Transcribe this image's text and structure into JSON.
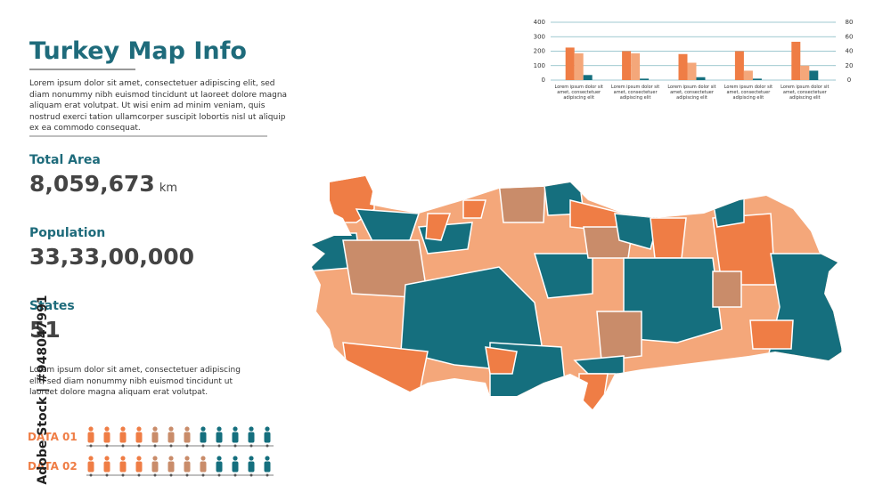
{
  "header": {
    "title": "Turkey Map Info",
    "description": "Lorem ipsum dolor sit amet, consectetuer adipiscing elit, sed diam nonummy nibh euismod tincidunt ut laoreet dolore magna aliquam erat volutpat. Ut wisi enim ad minim veniam, quis nostrud exerci tation ullamcorper suscipit lobortis nisl ut aliquip ex ea commodo consequat."
  },
  "stats": [
    {
      "label": "Total Area",
      "value": "8,059,673",
      "unit": "km"
    },
    {
      "label": "Population",
      "value": "33,33,00,000"
    },
    {
      "label": "States",
      "value": "51"
    }
  ],
  "note": "Lorem ipsum dolor sit amet, consectetuer adipiscing elit, sed diam nonummy nibh euismod tincidunt ut laoreet dolore magna aliquam erat volutpat.",
  "data_rows": [
    "DATA 01",
    "DATA 02"
  ],
  "watermark": "Adobe Stock | #948047991",
  "chart_data": {
    "type": "bar",
    "categories": [
      "Lorem ipsum dolor sit amet, consectetuer adipiscing elit",
      "Lorem ipsum dolor sit amet, consectetuer adipiscing elit",
      "Lorem ipsum dolor sit amet, consectetuer adipiscing elit",
      "Lorem ipsum dolor sit amet, consectetuer adipiscing elit",
      "Lorem ipsum dolor sit amet, consectetuer adipiscing elit"
    ],
    "series": [
      {
        "color": "#ef7d45",
        "values": [
          225,
          200,
          180,
          200,
          265
        ]
      },
      {
        "color": "#f4a77a",
        "values": [
          185,
          185,
          120,
          65,
          100
        ]
      },
      {
        "color": "#156f7e",
        "values": [
          35,
          10,
          20,
          10,
          65
        ]
      }
    ],
    "ylim": [
      0,
      400
    ],
    "yticks": [
      0,
      100,
      200,
      300,
      400
    ],
    "y2lim": [
      0,
      80
    ],
    "y2ticks": [
      0,
      20,
      40,
      60,
      80
    ],
    "grid": true
  }
}
